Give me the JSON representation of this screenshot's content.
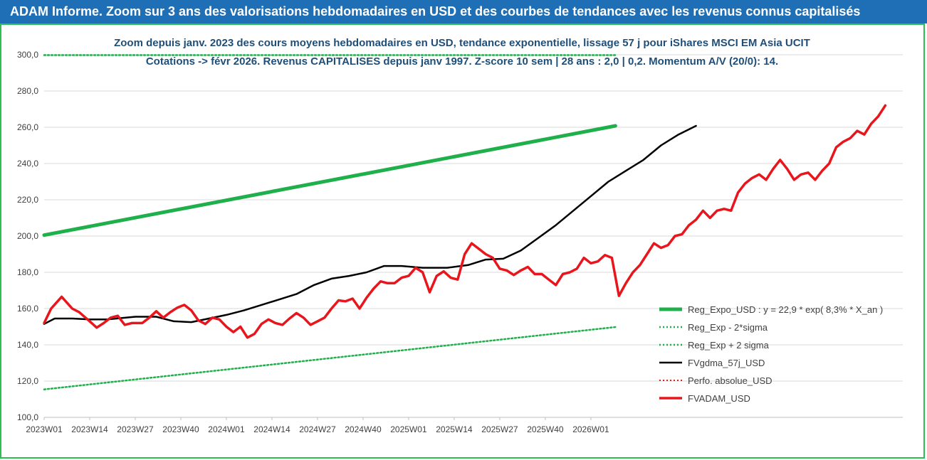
{
  "header": {
    "title": "ADAM Informe. Zoom sur 3 ans des valorisations hebdomadaires en USD et des courbes de tendances avec les revenus connus capitalisés"
  },
  "colors": {
    "banner": "#1f6fb6",
    "reg_expo": "#1fb04b",
    "sigma": "#1fb04b",
    "fvgdma": "#000000",
    "perfo": "#e0201b",
    "fvadam": "#e8161c",
    "frame_border": "#2dbf4f"
  },
  "chart_data": {
    "type": "line",
    "title": "Zoom depuis janv. 2023 des cours moyens hebdomadaires en USD, tendance exponentielle, lissage 57 j pour iShares MSCI EM Asia UCIT",
    "subtitle": "Cotations -> févr 2026. Revenus CAPITALISES depuis janv 1997. Z-score 10 sem | 28 ans : 2,0 | 0,2. Momentum A/V (20/0): 14.",
    "xlabel": "",
    "ylabel": "",
    "ylim": [
      100,
      300
    ],
    "y_ticks": [
      "300,0",
      "280,0",
      "260,0",
      "240,0",
      "220,0",
      "200,0",
      "180,0",
      "160,0",
      "140,0",
      "120,0",
      "100,0"
    ],
    "x_tick_labels": [
      "2023W01",
      "2023W14",
      "2023W27",
      "2023W40",
      "2024W01",
      "2024W14",
      "2024W27",
      "2024W40",
      "2025W01",
      "2025W14",
      "2025W27",
      "2025W40",
      "2026W01"
    ],
    "legend_position": "right",
    "grid": "horizontal",
    "series": [
      {
        "name": "Reg_Expo_USD : y = 22,9 * exp( 8,3% *  X_an )",
        "style": "solid-thick",
        "points": [
          [
            0,
            200.5
          ],
          [
            163,
            260.8
          ]
        ]
      },
      {
        "name": "Reg_Exp - 2*sigma",
        "style": "dotted",
        "points": [
          [
            0,
            115.4
          ],
          [
            163,
            149.8
          ]
        ]
      },
      {
        "name": "Reg_Exp + 2 sigma",
        "style": "dotted",
        "points": [
          [
            0,
            299.8
          ],
          [
            163,
            299.8
          ]
        ]
      },
      {
        "name": "FVgdma_57j_USD",
        "style": "solid",
        "points": [
          [
            0,
            151.5
          ],
          [
            3,
            154.5
          ],
          [
            8,
            154.5
          ],
          [
            13,
            154
          ],
          [
            18,
            154
          ],
          [
            26,
            155.5
          ],
          [
            32,
            155.5
          ],
          [
            37,
            153
          ],
          [
            42,
            152.5
          ],
          [
            47,
            154.5
          ],
          [
            52,
            156.5
          ],
          [
            57,
            159
          ],
          [
            62,
            162
          ],
          [
            67,
            165
          ],
          [
            72,
            168
          ],
          [
            77,
            173
          ],
          [
            82,
            176.5
          ],
          [
            87,
            178
          ],
          [
            92,
            180
          ],
          [
            97,
            183.5
          ],
          [
            102,
            183.5
          ],
          [
            108,
            182.5
          ],
          [
            115,
            182.5
          ],
          [
            121,
            184
          ],
          [
            126,
            187
          ],
          [
            131,
            187.5
          ],
          [
            136,
            192
          ],
          [
            141,
            199
          ],
          [
            146,
            206
          ],
          [
            151,
            214
          ],
          [
            156,
            222
          ],
          [
            161,
            230
          ],
          [
            166,
            236
          ],
          [
            171,
            242
          ],
          [
            176,
            250
          ],
          [
            181,
            256
          ],
          [
            186,
            260.8
          ]
        ]
      },
      {
        "name": "Perfo. absolue_USD",
        "style": "dotted",
        "points": []
      },
      {
        "name": "FVADAM_USD",
        "style": "solid-thick",
        "points": [
          [
            0,
            152
          ],
          [
            2,
            160
          ],
          [
            5,
            166.5
          ],
          [
            8,
            160
          ],
          [
            10,
            158
          ],
          [
            13,
            153
          ],
          [
            15,
            149.5
          ],
          [
            17,
            152
          ],
          [
            19,
            155
          ],
          [
            21,
            156
          ],
          [
            23,
            151
          ],
          [
            25,
            152
          ],
          [
            28,
            152
          ],
          [
            30,
            155
          ],
          [
            32,
            158.5
          ],
          [
            34,
            155
          ],
          [
            36,
            158
          ],
          [
            38,
            160.5
          ],
          [
            40,
            162
          ],
          [
            42,
            159
          ],
          [
            44,
            153.5
          ],
          [
            46,
            151.5
          ],
          [
            48,
            155
          ],
          [
            50,
            154
          ],
          [
            52,
            150
          ],
          [
            54,
            147
          ],
          [
            56,
            150
          ],
          [
            58,
            144
          ],
          [
            60,
            146
          ],
          [
            62,
            151.5
          ],
          [
            64,
            154
          ],
          [
            66,
            152
          ],
          [
            68,
            151
          ],
          [
            70,
            154.5
          ],
          [
            72,
            157.5
          ],
          [
            74,
            155
          ],
          [
            76,
            151
          ],
          [
            78,
            153
          ],
          [
            80,
            155
          ],
          [
            82,
            160
          ],
          [
            84,
            164.5
          ],
          [
            86,
            164
          ],
          [
            88,
            165.5
          ],
          [
            90,
            160
          ],
          [
            92,
            166
          ],
          [
            94,
            171
          ],
          [
            96,
            175
          ],
          [
            98,
            174
          ],
          [
            100,
            174
          ],
          [
            102,
            177
          ],
          [
            104,
            178
          ],
          [
            106,
            182.5
          ],
          [
            108,
            180
          ],
          [
            110,
            169
          ],
          [
            112,
            178
          ],
          [
            114,
            180.5
          ],
          [
            116,
            177
          ],
          [
            118,
            176
          ],
          [
            120,
            190
          ],
          [
            122,
            196
          ],
          [
            124,
            193
          ],
          [
            126,
            190
          ],
          [
            128,
            188
          ],
          [
            130,
            182
          ],
          [
            132,
            181
          ],
          [
            134,
            178.5
          ],
          [
            136,
            181
          ],
          [
            138,
            183
          ],
          [
            140,
            179
          ],
          [
            142,
            179
          ],
          [
            144,
            176
          ],
          [
            146,
            173
          ],
          [
            148,
            179
          ],
          [
            150,
            180
          ],
          [
            152,
            182
          ],
          [
            154,
            188
          ],
          [
            156,
            185
          ],
          [
            158,
            186
          ],
          [
            160,
            189.5
          ],
          [
            162,
            188
          ],
          [
            164,
            167
          ],
          [
            166,
            174
          ],
          [
            168,
            180
          ],
          [
            170,
            184
          ],
          [
            172,
            190
          ],
          [
            174,
            196
          ],
          [
            176,
            193.5
          ],
          [
            178,
            195
          ],
          [
            180,
            200
          ],
          [
            182,
            201
          ],
          [
            184,
            206
          ],
          [
            186,
            209
          ],
          [
            188,
            214
          ],
          [
            190,
            210
          ],
          [
            192,
            214
          ],
          [
            194,
            215
          ],
          [
            196,
            214
          ],
          [
            198,
            224
          ],
          [
            200,
            229
          ],
          [
            202,
            232
          ],
          [
            204,
            234
          ],
          [
            206,
            231
          ],
          [
            208,
            237
          ],
          [
            210,
            242
          ],
          [
            212,
            237
          ],
          [
            214,
            231
          ],
          [
            216,
            234
          ],
          [
            218,
            235
          ],
          [
            220,
            231
          ],
          [
            222,
            236
          ],
          [
            224,
            240
          ],
          [
            226,
            249
          ],
          [
            228,
            252
          ],
          [
            230,
            254
          ],
          [
            232,
            258
          ],
          [
            234,
            256
          ],
          [
            236,
            262
          ],
          [
            238,
            266
          ],
          [
            240,
            272
          ]
        ]
      }
    ]
  }
}
